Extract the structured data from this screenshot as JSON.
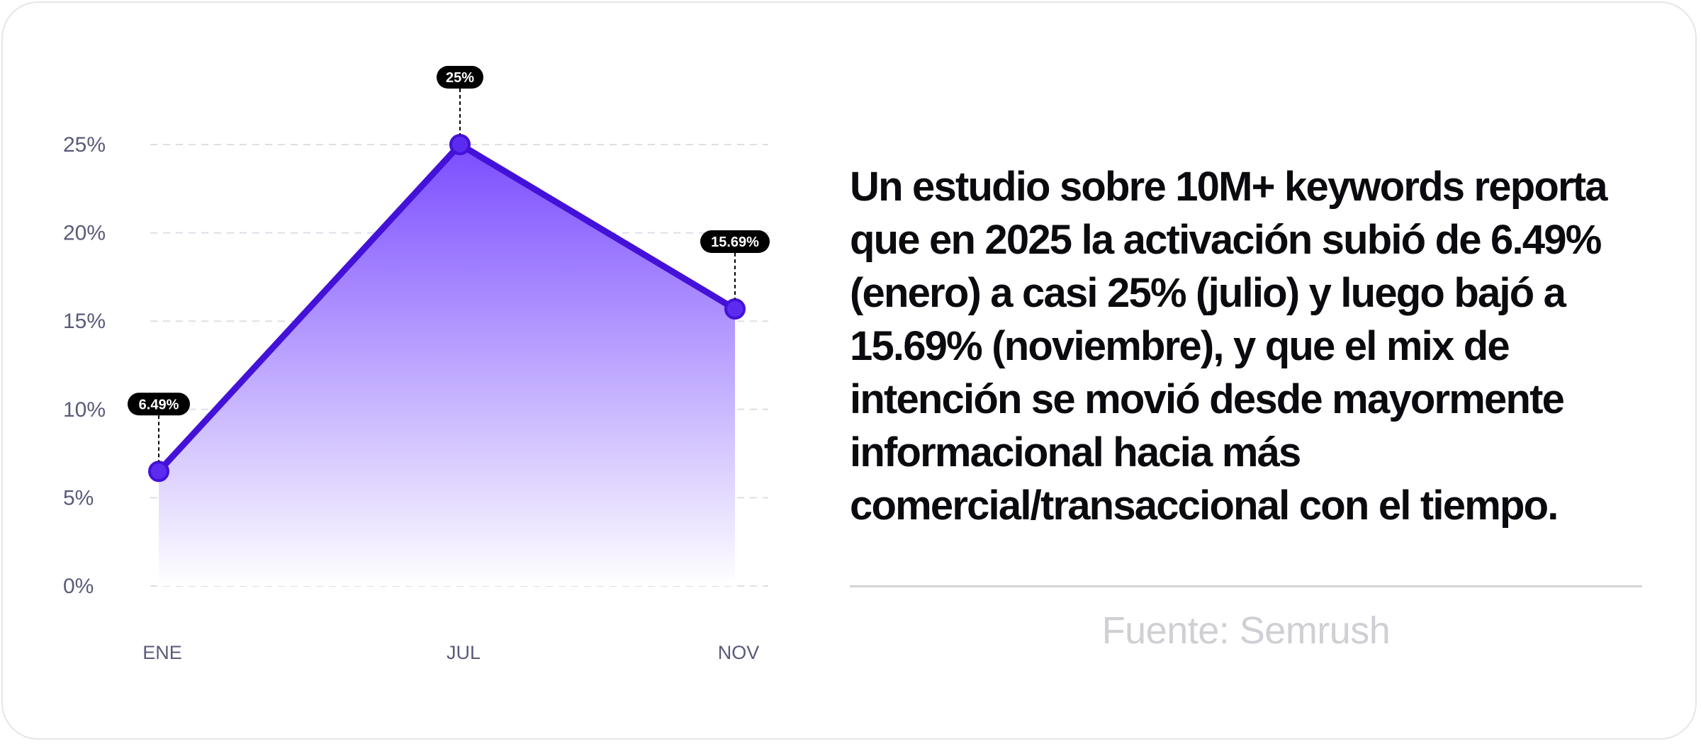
{
  "chart_data": {
    "type": "area",
    "categories": [
      "ENE",
      "JUL",
      "NOV"
    ],
    "values": [
      6.49,
      25,
      15.69
    ],
    "data_labels": [
      "6.49%",
      "25%",
      "15.69%"
    ],
    "y_ticks": [
      "0%",
      "5%",
      "10%",
      "15%",
      "20%",
      "25%"
    ],
    "y_tick_values": [
      0,
      5,
      10,
      15,
      20,
      25
    ],
    "ylim": [
      0,
      25
    ],
    "grid": true,
    "colors": {
      "line": "#4411d9",
      "marker_fill": "#5b2cf0",
      "area_top": "#7b4dff",
      "area_bottom": "#ffffff",
      "label_bg": "#000000",
      "label_text": "#ffffff",
      "axis_text": "#5a5a7a",
      "grid": "#dedee6"
    }
  },
  "description": "Un estudio sobre 10M+ keywords reporta que en 2025 la activación subió de 6.49% (enero) a casi 25% (julio) y luego bajó a 15.69% (noviembre), y que el mix de intención se movió desde mayormente informacional hacia más comercial/transaccional con el tiempo.",
  "source": "Fuente: Semrush"
}
